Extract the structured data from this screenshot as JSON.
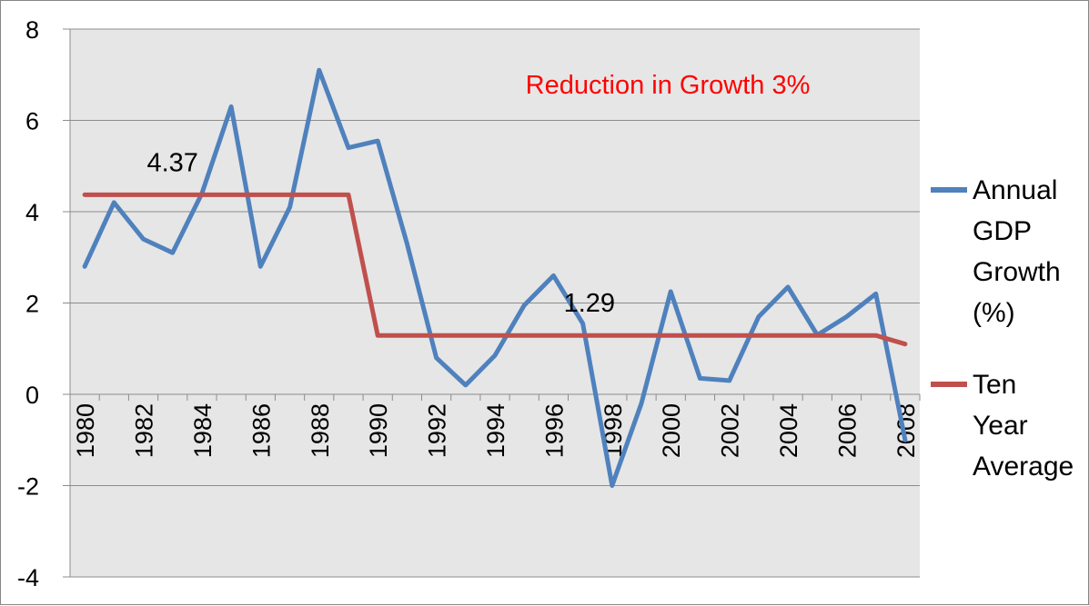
{
  "chart_data": {
    "type": "line",
    "title": "Reduction in Growth 3%",
    "title_color": "#FF0000",
    "xlabel": "",
    "ylabel": "",
    "ylim": [
      -4,
      8
    ],
    "yticks": [
      -4,
      -2,
      0,
      2,
      4,
      6,
      8
    ],
    "x": [
      1980,
      1981,
      1982,
      1983,
      1984,
      1985,
      1986,
      1987,
      1988,
      1989,
      1990,
      1991,
      1992,
      1993,
      1994,
      1995,
      1996,
      1997,
      1998,
      1999,
      2000,
      2001,
      2002,
      2003,
      2004,
      2005,
      2006,
      2007,
      2008
    ],
    "xtick_labels": [
      "1980",
      "1982",
      "1984",
      "1986",
      "1988",
      "1990",
      "1992",
      "1994",
      "1996",
      "1998",
      "2000",
      "2002",
      "2004",
      "2006",
      "2008"
    ],
    "grid": true,
    "plot_background": "#E6E6E6",
    "legend_position": "right",
    "series": [
      {
        "name_lines": [
          "Annual",
          "GDP",
          "Growth",
          "(%)"
        ],
        "color": "#4F81BD",
        "values": [
          2.8,
          4.2,
          3.4,
          3.1,
          4.4,
          6.3,
          2.8,
          4.1,
          7.1,
          5.4,
          5.55,
          3.3,
          0.8,
          0.2,
          0.85,
          1.95,
          2.6,
          1.55,
          -2.0,
          -0.2,
          2.25,
          0.35,
          0.3,
          1.7,
          2.35,
          1.3,
          1.7,
          2.2,
          -1.0
        ]
      },
      {
        "name_lines": [
          "Ten",
          "Year",
          "Average"
        ],
        "color": "#C0504D",
        "values": [
          4.37,
          4.37,
          4.37,
          4.37,
          4.37,
          4.37,
          4.37,
          4.37,
          4.37,
          4.37,
          1.29,
          1.29,
          1.29,
          1.29,
          1.29,
          1.29,
          1.29,
          1.29,
          1.29,
          1.29,
          1.29,
          1.29,
          1.29,
          1.29,
          1.29,
          1.29,
          1.29,
          1.29,
          1.1
        ]
      }
    ],
    "annotations": [
      {
        "text": "4.37",
        "x": 1983,
        "y": 4.37
      },
      {
        "text": "1.29",
        "x": 1998,
        "y": 1.29
      }
    ]
  }
}
